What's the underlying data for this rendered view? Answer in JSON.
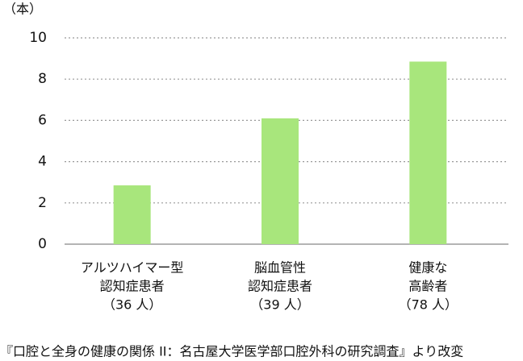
{
  "chart_data": {
    "type": "bar",
    "y_label": "（本）",
    "categories": [
      [
        "アルツハイマー型",
        "認知症患者",
        "（36 人）"
      ],
      [
        "脳血管性",
        "認知症患者",
        "（39 人）"
      ],
      [
        "健康な",
        "高齢者",
        "（78 人）"
      ]
    ],
    "values": [
      2.85,
      6.1,
      8.85
    ],
    "color": "#a8e67c",
    "ylim": [
      0,
      10
    ],
    "yticks": [
      0,
      2,
      4,
      6,
      8,
      10
    ],
    "grid": true,
    "source": "『口腔と全身の健康の関係 II：名古屋大学医学部口腔外科の研究調査』より改変"
  }
}
